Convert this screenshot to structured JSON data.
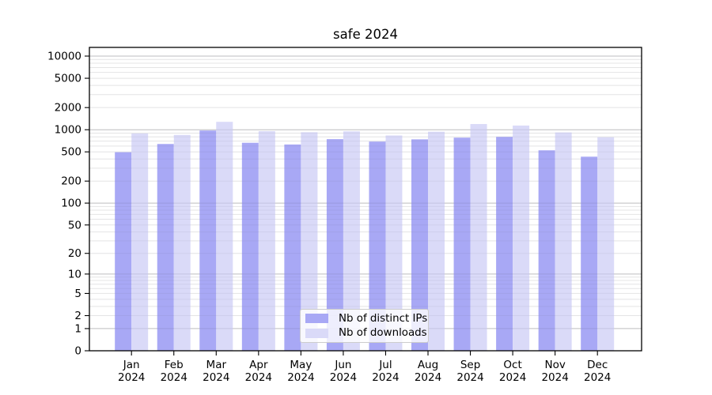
{
  "chart_data": {
    "type": "bar",
    "title": "safe 2024",
    "categories": [
      "Jan",
      "Feb",
      "Mar",
      "Apr",
      "May",
      "Jun",
      "Jul",
      "Aug",
      "Sep",
      "Oct",
      "Nov",
      "Dec"
    ],
    "x_sub_label": "2024",
    "y_scale": "log1p",
    "y_ticks": [
      0,
      1,
      2,
      5,
      10,
      20,
      50,
      100,
      200,
      500,
      1000,
      2000,
      5000,
      10000
    ],
    "ylim": [
      0,
      13000
    ],
    "grid": true,
    "legend_position": "lower center",
    "series": [
      {
        "name": "Nb of distinct IPs",
        "color": "#a8a8f5",
        "values": [
          495,
          640,
          975,
          665,
          630,
          745,
          690,
          740,
          780,
          800,
          525,
          430
        ]
      },
      {
        "name": "Nb of downloads",
        "color": "#dadaf8",
        "values": [
          890,
          850,
          1280,
          955,
          925,
          950,
          835,
          940,
          1195,
          1140,
          920,
          790
        ]
      }
    ],
    "colors": {
      "major_grid": "#d2d2d2",
      "minor_grid": "#f0f0f0",
      "spine": "#000000"
    }
  }
}
